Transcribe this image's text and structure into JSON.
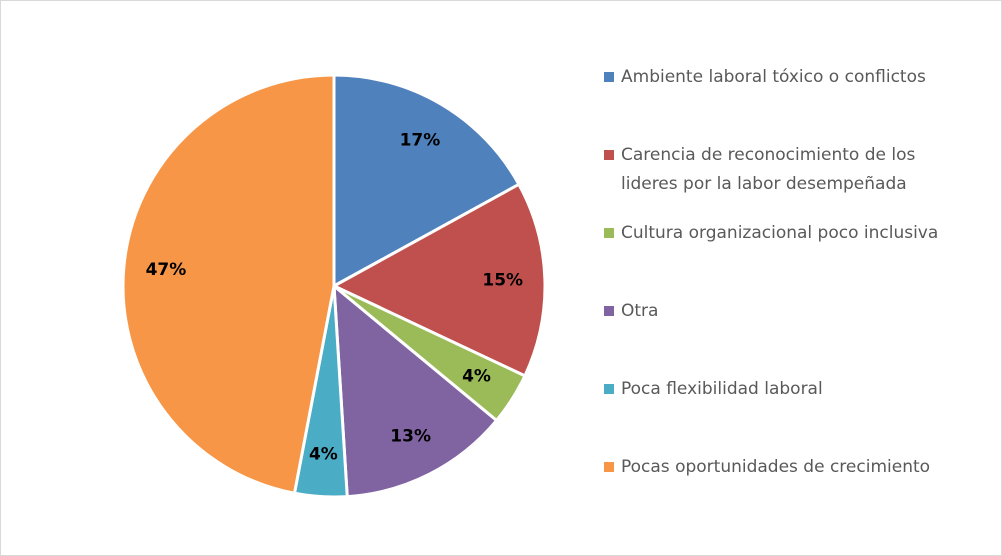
{
  "chart_data": {
    "type": "pie",
    "categories": [
      "Ambiente laboral tóxico o conflictos",
      "Carencia de reconocimiento de los lideres por la labor desempeñada",
      "Cultura organizacional poco inclusiva",
      "Otra",
      "Poca flexibilidad laboral",
      "Pocas oportunidades de crecimiento"
    ],
    "values": [
      17,
      15,
      4,
      13,
      4,
      47
    ],
    "value_labels": [
      "17%",
      "15%",
      "4%",
      "13%",
      "4%",
      "47%"
    ],
    "colors": [
      "#4f81bd",
      "#c0504d",
      "#9bbb59",
      "#8064a2",
      "#4bacc6",
      "#f79646"
    ],
    "legend": "right"
  }
}
